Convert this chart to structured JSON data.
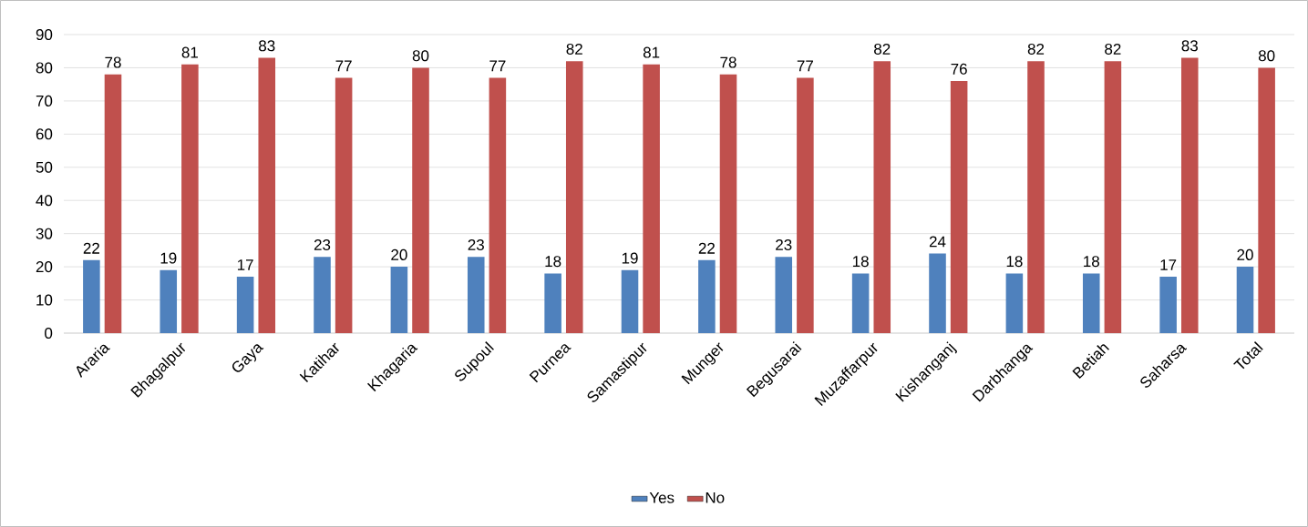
{
  "chart_data": {
    "type": "bar",
    "categories": [
      "Araria",
      "Bhagalpur",
      "Gaya",
      "Katihar",
      "Khagaria",
      "Supoul",
      "Purnea",
      "Samastipur",
      "Munger",
      "Begusarai",
      "Muzaffarpur",
      "Kishanganj",
      "Darbhanga",
      "Betiah",
      "Saharsa",
      "Total"
    ],
    "series": [
      {
        "name": "Yes",
        "color": "#4f81bd",
        "values": [
          22,
          19,
          17,
          23,
          20,
          23,
          18,
          19,
          22,
          23,
          18,
          24,
          18,
          18,
          17,
          20
        ]
      },
      {
        "name": "No",
        "color": "#c0504d",
        "values": [
          78,
          81,
          83,
          77,
          80,
          77,
          82,
          81,
          78,
          77,
          82,
          76,
          82,
          82,
          83,
          80
        ]
      }
    ],
    "ylim": [
      0,
      90
    ],
    "yticks": [
      0,
      10,
      20,
      30,
      40,
      50,
      60,
      70,
      80,
      90
    ],
    "grid": "y",
    "legend": "bottom",
    "data_labels": true
  }
}
